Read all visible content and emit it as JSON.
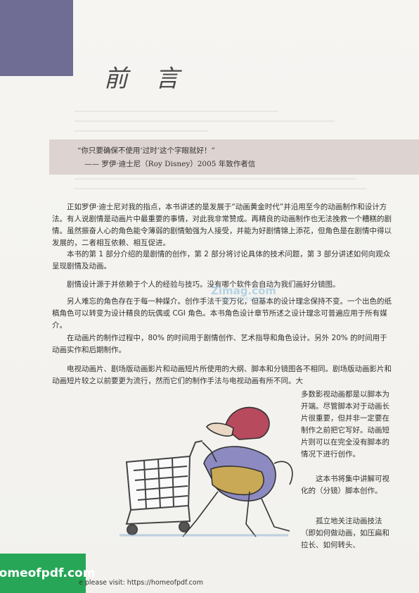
{
  "title": "前 言",
  "quote": {
    "line1": "“你只要确保不使用‘过时’这个字眼就好！”",
    "line2": "—— 罗伊·迪士尼（Roy Disney）2005 年致作者信"
  },
  "paragraphs": [
    "正如罗伊·迪士尼对我的指点，本书讲述的是发展于“动画黄金时代”并沿用至今的动画制作和设计方法。有人说剧情是动画片中最重要的事情，对此我非常赞成。再精良的动画制作也无法挽救一个糟糕的剧情。虽然振奋人心的角色能令薄弱的剧情勉强为人接受，并能为好剧情锦上添花，但角色是在剧情中得以发展的，二者相互依赖、相互促进。",
    "本书的第 1 部分介绍的是剧情的创作，第 2 部分将讨论具体的技术问题，第 3 部分讲述如何向观众呈现剧情及动画。",
    "剧情设计源于并依赖于个人的经验与技巧。没有哪个软件会自动为我们画好分镜图。",
    "另人难忘的角色存在于每一种媒介。创作手法千变万化，但基本的设计理念保持不变。一个出色的纸稿角色可以转变为设计精良的玩偶或 CGI 角色。本书角色设计章节所述之设计理念可普遍应用于所有媒介。",
    "在动画片的制作过程中，80% 的时间用于剧情创作、艺术指导和角色设计。另外 20% 的时间用于动画实作和后期制作。",
    "电视动画片、剧场版动画影片和动画短片所使用的大纲、脚本和分镜图各不相同。剧场版动画影片和动画短片较之以前要更为流行，然而它们的制作手法与电视动画有所不同。大"
  ],
  "side_column": {
    "p1": "多数影视动画都是以脚本为开端。尽管脚本对于动画长片很重要，但并非一定要在制作之前把它写好。动画短片则可以在完全没有脚本的情况下进行创作。",
    "p2": "这本书将集中讲解可视化的（分镜）脚本创作。",
    "p3": "孤立地关注动画技法（即如何做动画，如压扁和拉长、如何转头、"
  },
  "watermark": {
    "text": "Zimag.com",
    "sub": "志墨网 · 中国专业图书网"
  },
  "footer": {
    "badge": "homeofpdf.com",
    "text": "e please visit: https://homeofpdf.com"
  },
  "colors": {
    "corner": "#6f6d93",
    "quote_band": "#ddd3d0",
    "badge": "#27a657"
  }
}
